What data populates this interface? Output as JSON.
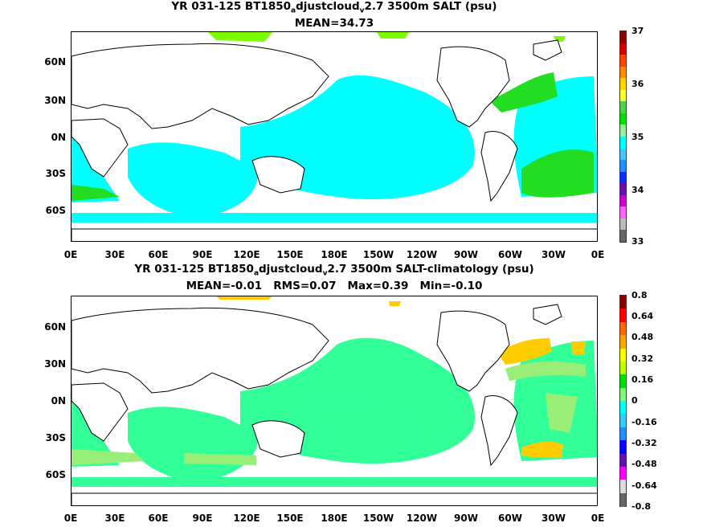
{
  "panel_top": {
    "title_pre": "YR 031-125 BT1850",
    "title_sub1": "a",
    "title_mid": "djustcloud",
    "title_sub2": "v",
    "title_post": "2.7 3500m SALT (psu)",
    "stats": "MEAN=34.73",
    "colorbar_labels": [
      "37",
      "36",
      "35",
      "34",
      "33"
    ],
    "colorbar_colors": [
      "#8b0000",
      "#d40000",
      "#ff4500",
      "#ff8c00",
      "#ffd700",
      "#ffff33",
      "#4cd44c",
      "#00e000",
      "#9aef9a",
      "#00ffff",
      "#40c8ff",
      "#1e90ff",
      "#0a2cff",
      "#6a0dad",
      "#cc00cc",
      "#ff66ff",
      "#bbbbbb",
      "#666666"
    ]
  },
  "panel_bottom": {
    "title_pre": "YR 031-125 BT1850",
    "title_sub1": "a",
    "title_mid": "djustcloud",
    "title_sub2": "v",
    "title_post": "2.7 3500m SALT-climatology (psu)",
    "stats": "MEAN=-0.01   RMS=0.07   Max=0.39   Min=-0.10",
    "colorbar_labels": [
      "0.8",
      "0.64",
      "0.48",
      "0.32",
      "0.16",
      "0",
      "-0.16",
      "-0.32",
      "-0.48",
      "-0.64",
      "-0.8"
    ],
    "colorbar_colors": [
      "#8b0000",
      "#ff0000",
      "#ff6a00",
      "#ffa500",
      "#ffff00",
      "#bfff00",
      "#00dd00",
      "#7cfc7c",
      "#00ffff",
      "#33ccff",
      "#1e90ff",
      "#0000ff",
      "#6a0dad",
      "#ff00ff",
      "#dddddd",
      "#666666"
    ]
  },
  "map_fill": {
    "top": "#00ffff",
    "bottom": "#33ff99",
    "accent_top": "#7cfc00",
    "accent_bottom": "#ffcc00"
  },
  "axes": {
    "lat_labels": [
      "60N",
      "30N",
      "0N",
      "30S",
      "60S"
    ],
    "lon_labels": [
      "0E",
      "30E",
      "60E",
      "90E",
      "120E",
      "150E",
      "180E",
      "150W",
      "120W",
      "90W",
      "60W",
      "30W",
      "0E"
    ]
  }
}
